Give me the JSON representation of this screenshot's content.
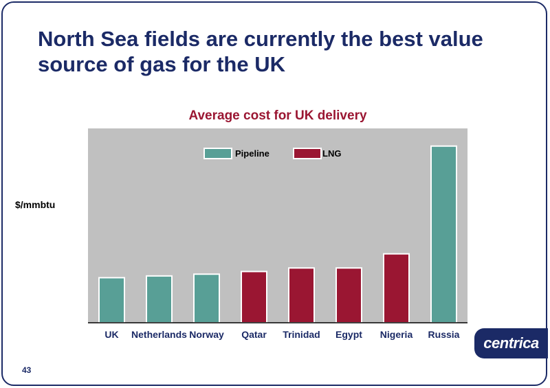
{
  "slide": {
    "title_line1": "North Sea fields are currently the best value",
    "title_line2": "source of gas for the UK",
    "page_number": "43",
    "logo_text": "centrica"
  },
  "chart_data": {
    "type": "bar",
    "title": "Average cost for UK delivery",
    "xlabel": "",
    "ylabel": "$/mmbtu",
    "categories": [
      "UK",
      "Netherlands",
      "Norway",
      "Qatar",
      "Trinidad",
      "Egypt",
      "Nigeria",
      "Russia"
    ],
    "values": [
      2.55,
      2.65,
      2.75,
      2.9,
      3.1,
      3.1,
      3.9,
      10.0
    ],
    "bar_types": [
      "Pipeline",
      "Pipeline",
      "Pipeline",
      "LNG",
      "LNG",
      "LNG",
      "LNG",
      "Pipeline"
    ],
    "legend": [
      {
        "name": "Pipeline",
        "color": "#589f96"
      },
      {
        "name": "LNG",
        "color": "#9a1632"
      }
    ],
    "legend_position": "top",
    "ylim": [
      0,
      11
    ],
    "y_ticks_shown": false,
    "grid": false,
    "plot_background": "#c0c0c0"
  }
}
